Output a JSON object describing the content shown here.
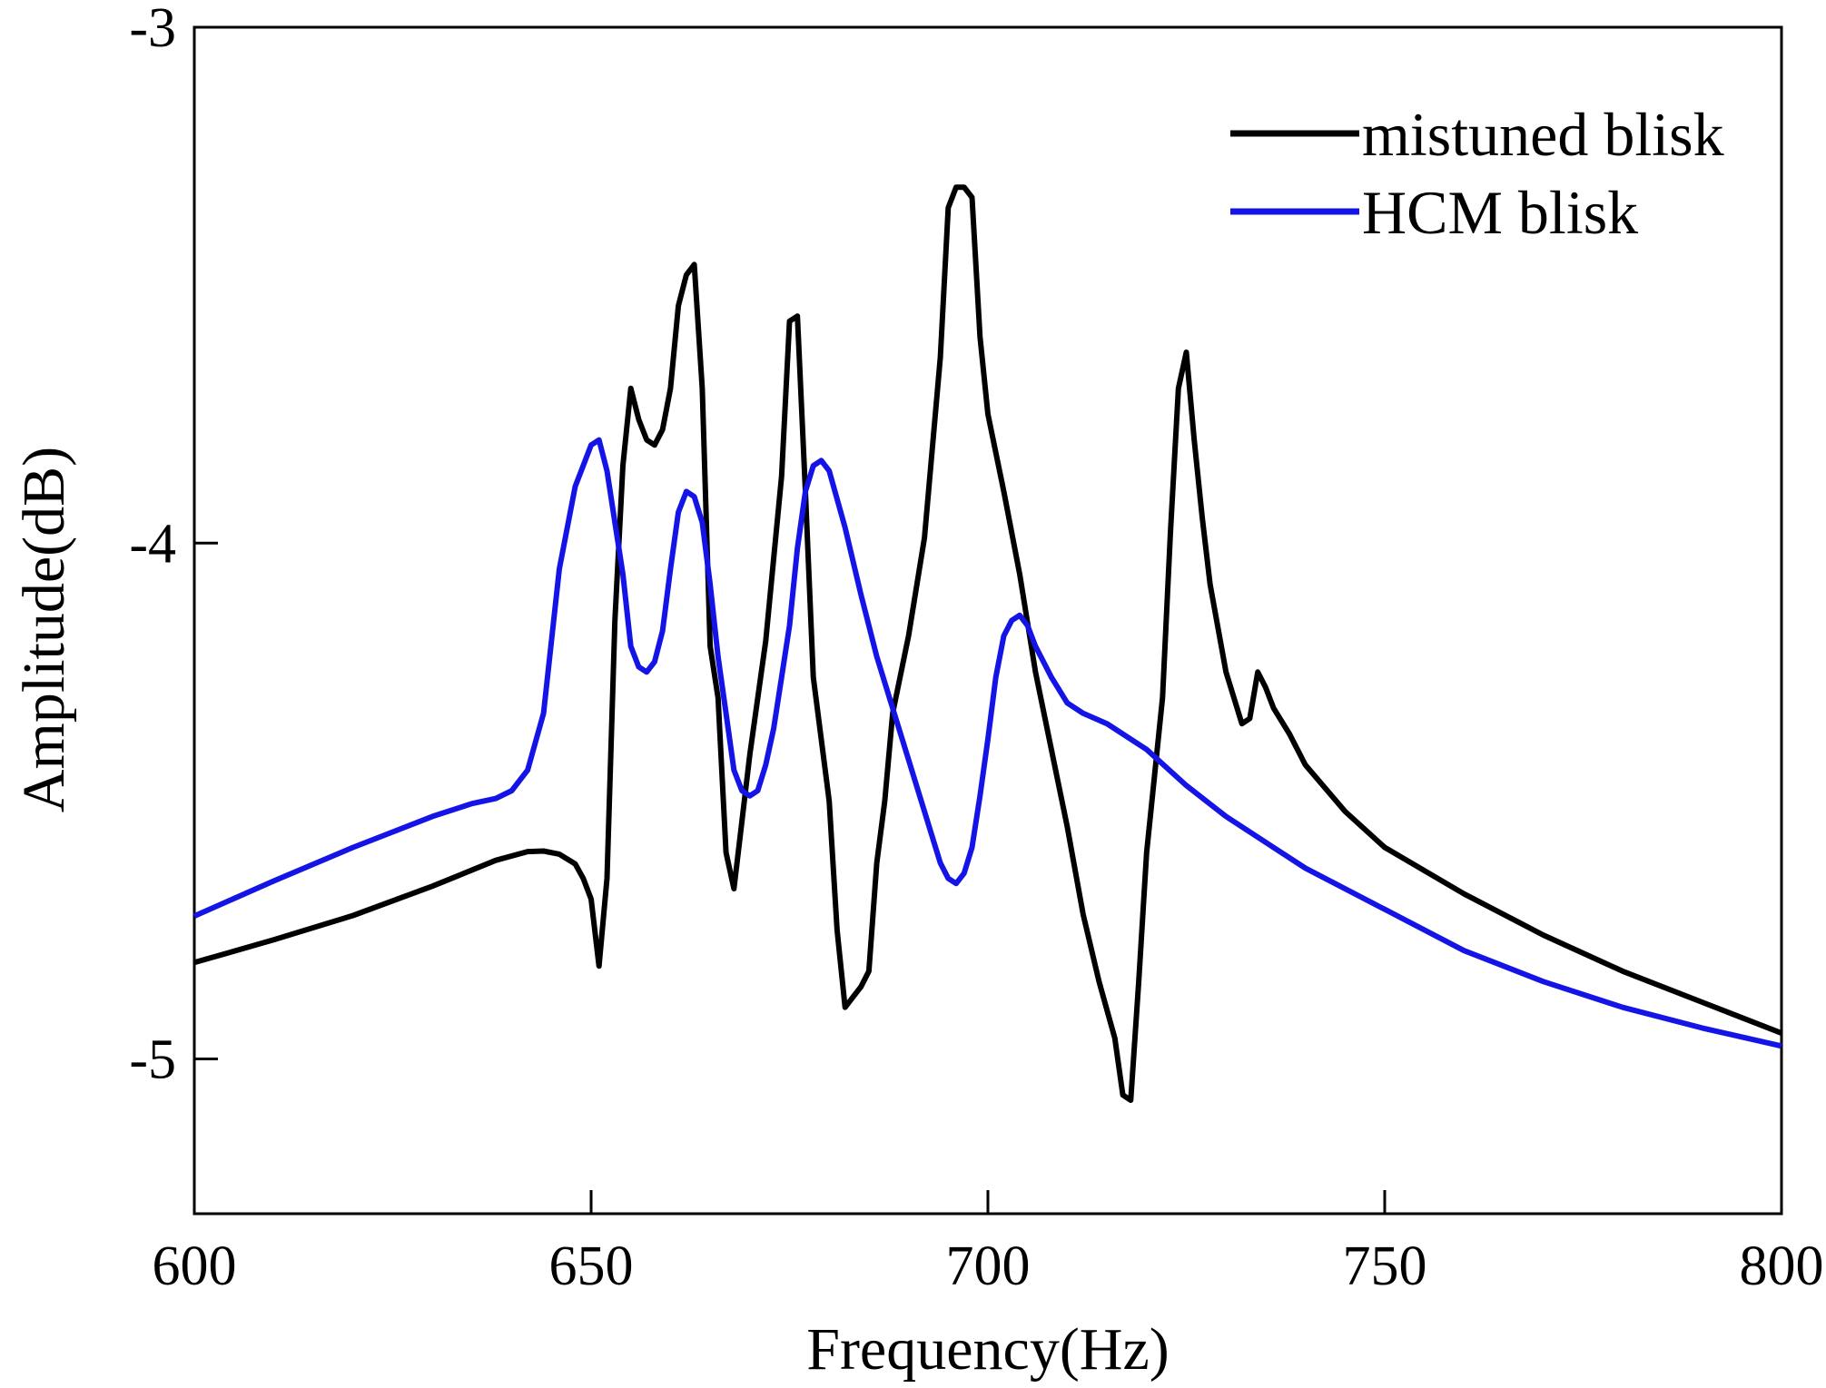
{
  "chart_data": {
    "type": "line",
    "title": "",
    "xlabel": "Frequency(Hz)",
    "ylabel": "Amplitude(dB)",
    "xlim": [
      600,
      800
    ],
    "ylim": [
      -5.3,
      -3.0
    ],
    "xticks": [
      600,
      650,
      700,
      750,
      800
    ],
    "yticks": [
      -3,
      -4,
      -5
    ],
    "xtick_labels": [
      "600",
      "650",
      "700",
      "750",
      "800"
    ],
    "ytick_labels": [
      "-3",
      "-4",
      "-5"
    ],
    "grid": false,
    "legend_position": "top-right",
    "series": [
      {
        "name": "mistuned blisk",
        "color": "#000000",
        "points": [
          [
            600,
            -4.813
          ],
          [
            610,
            -4.769
          ],
          [
            620,
            -4.722
          ],
          [
            630,
            -4.665
          ],
          [
            638,
            -4.615
          ],
          [
            642,
            -4.598
          ],
          [
            644,
            -4.597
          ],
          [
            646,
            -4.603
          ],
          [
            648,
            -4.622
          ],
          [
            649,
            -4.65
          ],
          [
            650,
            -4.69
          ],
          [
            651,
            -4.82
          ],
          [
            652,
            -4.65
          ],
          [
            653,
            -4.15
          ],
          [
            654,
            -3.85
          ],
          [
            655,
            -3.7
          ],
          [
            656,
            -3.76
          ],
          [
            657,
            -3.8
          ],
          [
            658,
            -3.81
          ],
          [
            659,
            -3.78
          ],
          [
            660,
            -3.7
          ],
          [
            661,
            -3.54
          ],
          [
            662,
            -3.48
          ],
          [
            663,
            -3.46
          ],
          [
            664,
            -3.7
          ],
          [
            665,
            -4.2
          ],
          [
            666,
            -4.3
          ],
          [
            667,
            -4.6
          ],
          [
            668,
            -4.67
          ],
          [
            670,
            -4.41
          ],
          [
            672,
            -4.19
          ],
          [
            674,
            -3.87
          ],
          [
            675,
            -3.57
          ],
          [
            676,
            -3.56
          ],
          [
            677,
            -3.9
          ],
          [
            678,
            -4.26
          ],
          [
            680,
            -4.5
          ],
          [
            681,
            -4.75
          ],
          [
            682,
            -4.9
          ],
          [
            683,
            -4.88
          ],
          [
            684,
            -4.86
          ],
          [
            685,
            -4.83
          ],
          [
            686,
            -4.62
          ],
          [
            687,
            -4.5
          ],
          [
            688,
            -4.33
          ],
          [
            690,
            -4.18
          ],
          [
            692,
            -3.99
          ],
          [
            694,
            -3.64
          ],
          [
            695,
            -3.35
          ],
          [
            696,
            -3.31
          ],
          [
            697,
            -3.31
          ],
          [
            698,
            -3.33
          ],
          [
            699,
            -3.6
          ],
          [
            700,
            -3.75
          ],
          [
            702,
            -3.9
          ],
          [
            704,
            -4.06
          ],
          [
            706,
            -4.25
          ],
          [
            708,
            -4.4
          ],
          [
            710,
            -4.55
          ],
          [
            712,
            -4.72
          ],
          [
            714,
            -4.85
          ],
          [
            716,
            -4.96
          ],
          [
            717,
            -5.07
          ],
          [
            718,
            -5.08
          ],
          [
            719,
            -4.85
          ],
          [
            720,
            -4.6
          ],
          [
            722,
            -4.3
          ],
          [
            723,
            -3.98
          ],
          [
            724,
            -3.7
          ],
          [
            725,
            -3.63
          ],
          [
            726,
            -3.8
          ],
          [
            727,
            -3.95
          ],
          [
            728,
            -4.08
          ],
          [
            730,
            -4.25
          ],
          [
            732,
            -4.35
          ],
          [
            733,
            -4.34
          ],
          [
            734,
            -4.25
          ],
          [
            735,
            -4.28
          ],
          [
            736,
            -4.32
          ],
          [
            738,
            -4.37
          ],
          [
            740,
            -4.43
          ],
          [
            745,
            -4.52
          ],
          [
            750,
            -4.59
          ],
          [
            760,
            -4.68
          ],
          [
            770,
            -4.76
          ],
          [
            780,
            -4.83
          ],
          [
            790,
            -4.89
          ],
          [
            800,
            -4.95
          ]
        ]
      },
      {
        "name": "HCM blisk",
        "color": "#1414e6",
        "points": [
          [
            600,
            -4.723
          ],
          [
            610,
            -4.655
          ],
          [
            620,
            -4.59
          ],
          [
            630,
            -4.53
          ],
          [
            635,
            -4.505
          ],
          [
            638,
            -4.495
          ],
          [
            640,
            -4.48
          ],
          [
            642,
            -4.44
          ],
          [
            644,
            -4.33
          ],
          [
            646,
            -4.05
          ],
          [
            648,
            -3.89
          ],
          [
            649,
            -3.85
          ],
          [
            650,
            -3.81
          ],
          [
            651,
            -3.8
          ],
          [
            652,
            -3.86
          ],
          [
            653,
            -3.96
          ],
          [
            654,
            -4.06
          ],
          [
            655,
            -4.2
          ],
          [
            656,
            -4.24
          ],
          [
            657,
            -4.25
          ],
          [
            658,
            -4.23
          ],
          [
            659,
            -4.17
          ],
          [
            660,
            -4.05
          ],
          [
            661,
            -3.94
          ],
          [
            662,
            -3.9
          ],
          [
            663,
            -3.91
          ],
          [
            664,
            -3.96
          ],
          [
            665,
            -4.08
          ],
          [
            666,
            -4.22
          ],
          [
            667,
            -4.33
          ],
          [
            668,
            -4.44
          ],
          [
            669,
            -4.48
          ],
          [
            670,
            -4.49
          ],
          [
            671,
            -4.48
          ],
          [
            672,
            -4.43
          ],
          [
            673,
            -4.36
          ],
          [
            674,
            -4.26
          ],
          [
            675,
            -4.16
          ],
          [
            676,
            -4.01
          ],
          [
            677,
            -3.9
          ],
          [
            678,
            -3.85
          ],
          [
            679,
            -3.84
          ],
          [
            680,
            -3.86
          ],
          [
            682,
            -3.97
          ],
          [
            684,
            -4.1
          ],
          [
            686,
            -4.22
          ],
          [
            688,
            -4.32
          ],
          [
            690,
            -4.42
          ],
          [
            692,
            -4.52
          ],
          [
            694,
            -4.62
          ],
          [
            695,
            -4.65
          ],
          [
            696,
            -4.66
          ],
          [
            697,
            -4.64
          ],
          [
            698,
            -4.59
          ],
          [
            699,
            -4.49
          ],
          [
            700,
            -4.38
          ],
          [
            701,
            -4.26
          ],
          [
            702,
            -4.18
          ],
          [
            703,
            -4.15
          ],
          [
            704,
            -4.14
          ],
          [
            705,
            -4.16
          ],
          [
            706,
            -4.2
          ],
          [
            708,
            -4.26
          ],
          [
            710,
            -4.31
          ],
          [
            712,
            -4.33
          ],
          [
            715,
            -4.35
          ],
          [
            720,
            -4.4
          ],
          [
            725,
            -4.47
          ],
          [
            730,
            -4.53
          ],
          [
            735,
            -4.58
          ],
          [
            740,
            -4.63
          ],
          [
            750,
            -4.71
          ],
          [
            760,
            -4.79
          ],
          [
            770,
            -4.85
          ],
          [
            780,
            -4.9
          ],
          [
            790,
            -4.94
          ],
          [
            800,
            -4.975
          ]
        ]
      }
    ]
  }
}
